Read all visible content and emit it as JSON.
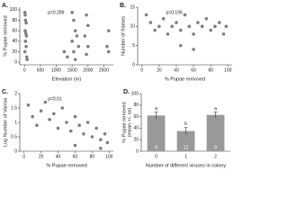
{
  "chart_data": [
    {
      "type": "scatter",
      "panel": "A.",
      "annotation": "p=0.289",
      "x_label": "Elevation (m)",
      "y_label": "% Pupae removed",
      "color": "#7f7f7f",
      "x": [
        10,
        20,
        30,
        50,
        20,
        40,
        60,
        30,
        50,
        10,
        70,
        80,
        1500,
        1550,
        1600,
        1650,
        1500,
        1700,
        1550,
        1600,
        1950,
        2000,
        1900,
        2000,
        1950,
        2650,
        2600,
        2650,
        1250,
        1350
      ],
      "values": [
        95,
        90,
        80,
        75,
        60,
        55,
        50,
        40,
        30,
        20,
        10,
        5,
        95,
        80,
        60,
        50,
        40,
        30,
        20,
        5,
        90,
        70,
        50,
        30,
        15,
        60,
        30,
        20,
        20,
        10
      ],
      "xlim": [
        -150,
        2800
      ],
      "xticks": [
        0,
        500,
        1000,
        1500,
        2000,
        2500
      ],
      "ylim": [
        -5,
        105
      ],
      "yticks": [
        0,
        20,
        40,
        60,
        80,
        100
      ]
    },
    {
      "type": "scatter",
      "panel": "B.",
      "annotation": "p=0.196",
      "x_label": "% Pupae removed",
      "y_label": "Number of frames",
      "color": "#7f7f7f",
      "x": [
        5,
        10,
        15,
        20,
        25,
        30,
        35,
        40,
        45,
        50,
        55,
        60,
        65,
        70,
        75,
        80,
        85,
        90,
        95,
        98,
        45,
        60
      ],
      "values": [
        13,
        11,
        9,
        10,
        12,
        8,
        10,
        11,
        9,
        13,
        10,
        8,
        11,
        10,
        12,
        9,
        10,
        11,
        8,
        10,
        5,
        4
      ],
      "xlim": [
        -5,
        105
      ],
      "xticks": [
        0,
        20,
        40,
        60,
        80,
        100
      ],
      "ylim": [
        0,
        15
      ],
      "yticks": [
        0,
        5,
        10,
        15
      ]
    },
    {
      "type": "scatter",
      "panel": "C.",
      "annotation": "p=0.01",
      "x_label": "% Pupae removed",
      "y_label": "Log Number of Varroa",
      "color": "#7f7f7f",
      "x": [
        5,
        10,
        15,
        20,
        25,
        30,
        35,
        40,
        45,
        50,
        55,
        60,
        65,
        70,
        75,
        80,
        85,
        90,
        95,
        98,
        60,
        90
      ],
      "values": [
        1.6,
        1.2,
        0.9,
        1.4,
        1.7,
        1.1,
        1.3,
        0.8,
        1.5,
        1.0,
        0.7,
        1.2,
        0.9,
        0.6,
        1.0,
        0.5,
        0.8,
        0.4,
        0.6,
        0.3,
        0.2,
        0.1
      ],
      "xlim": [
        -5,
        105
      ],
      "xticks": [
        0,
        20,
        40,
        60,
        80,
        100
      ],
      "ylim": [
        0,
        2
      ],
      "yticks": [
        0,
        0.5,
        1,
        1.5,
        2
      ]
    },
    {
      "type": "bar",
      "panel": "D.",
      "x_label": "Number of different viruses in colony",
      "y_label": [
        "% Pupae removed",
        "(mean +/- se)"
      ],
      "color": "#999999",
      "categories": [
        "0",
        "1",
        "2"
      ],
      "values": [
        62,
        35,
        63
      ],
      "errors": [
        6,
        6,
        5
      ],
      "letters": [
        "a",
        "b",
        "a"
      ],
      "sample_sizes": [
        9,
        12,
        9
      ],
      "ylim": [
        0,
        100
      ],
      "yticks": [
        0,
        20,
        40,
        60,
        80,
        100
      ]
    }
  ]
}
